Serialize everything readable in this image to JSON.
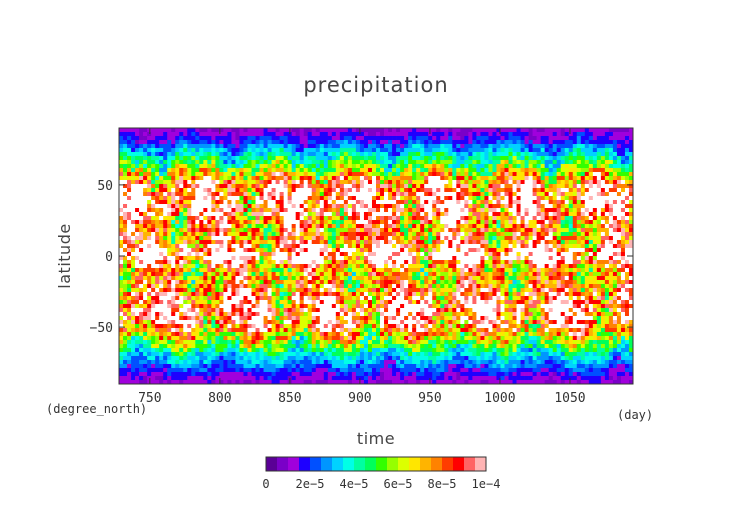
{
  "chart_data": {
    "type": "heatmap",
    "title": "precipitation",
    "xlabel": "time",
    "ylabel": "latitude",
    "x_units": "(day)",
    "y_units": "(degree_north)",
    "xlim": [
      728,
      1095
    ],
    "ylim": [
      -90,
      90
    ],
    "x_ticks": [
      750,
      800,
      850,
      900,
      950,
      1000,
      1050
    ],
    "x_tick_labels": [
      "750",
      "800",
      "850",
      "900",
      "950",
      "1000",
      "1050"
    ],
    "y_ticks": [
      50,
      0,
      -50
    ],
    "y_tick_labels": [
      "50",
      "0",
      "−50"
    ],
    "colorbar": {
      "min": 0,
      "max": 0.0001,
      "labels": [
        "0",
        "2e−5",
        "4e−5",
        "6e−5",
        "8e−5",
        "1e−4"
      ],
      "colors": [
        "#5a0096",
        "#7a00c8",
        "#a000dc",
        "#1e00ff",
        "#0050ff",
        "#0096ff",
        "#00d2ff",
        "#00ffe6",
        "#00ffa0",
        "#00ff5a",
        "#32ff00",
        "#96ff00",
        "#dcff00",
        "#ffe600",
        "#ffb400",
        "#ff8200",
        "#ff3c00",
        "#ff0000",
        "#ff6464",
        "#ffb4b4"
      ]
    },
    "latitude_profile": {
      "latitude": [
        -90,
        -80,
        -70,
        -60,
        -50,
        -40,
        -30,
        -20,
        -10,
        0,
        10,
        20,
        30,
        40,
        50,
        60,
        70,
        80,
        90
      ],
      "typical_value": [
        1e-05,
        2e-05,
        3.5e-05,
        6e-05,
        8.5e-05,
        9.5e-05,
        9e-05,
        7.5e-05,
        7e-05,
        0.00011,
        8e-05,
        7.5e-05,
        9e-05,
        9.5e-05,
        9e-05,
        6e-05,
        4e-05,
        2e-05,
        1e-05
      ]
    }
  }
}
